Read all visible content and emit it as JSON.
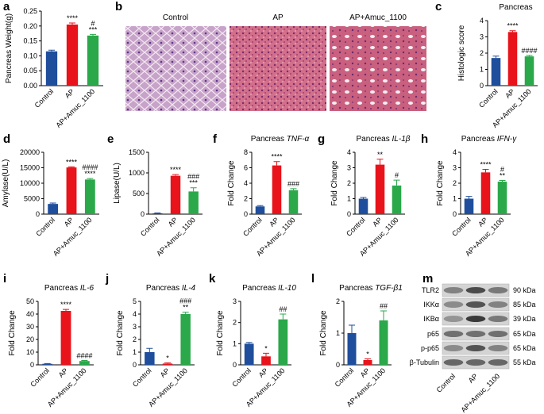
{
  "panel_labels": [
    "a",
    "b",
    "c",
    "d",
    "e",
    "f",
    "g",
    "h",
    "i",
    "j",
    "k",
    "l",
    "m"
  ],
  "histology": {
    "labels": [
      "Control",
      "AP",
      "AP+Amuc_1100"
    ]
  },
  "western_blot": {
    "proteins": [
      "TLR2",
      "IKKα",
      "IKBα",
      "p65",
      "p-p65",
      "β-Tubulin"
    ],
    "sizes": [
      "90 kDa",
      "85 kDa",
      "39 kDa",
      "65 kDa",
      "65 kDa",
      "55 kDa"
    ],
    "lanes": [
      "Control",
      "AP",
      "AP+Amuc_1100"
    ]
  },
  "chart_data": [
    {
      "type": "bar",
      "ylabel": "Pancreas Weight(g)",
      "categories": [
        "Control",
        "AP",
        "AP+Amuc_1100"
      ],
      "colors": [
        "#1f4e9c",
        "#e8131b",
        "#2aa84a"
      ],
      "values": [
        0.115,
        0.205,
        0.168
      ],
      "errors": [
        0.004,
        0.005,
        0.004
      ],
      "annotations": [
        null,
        [
          "****"
        ],
        [
          "***",
          "#"
        ]
      ],
      "ylim": [
        0,
        0.25
      ],
      "yticks": [
        {
          "value": 0,
          "label": "0.00"
        },
        {
          "value": 0.05,
          "label": "0.05"
        },
        {
          "value": 0.1,
          "label": "0.10"
        },
        {
          "value": 0.15,
          "label": "0.15"
        },
        {
          "value": 0.2,
          "label": "0.20"
        },
        {
          "value": 0.25,
          "label": "0.25"
        }
      ]
    },
    {
      "type": "bar",
      "title": "Pancreas",
      "ylabel": "Histologic score",
      "categories": [
        "Control",
        "AP",
        "AP+Amuc_1100"
      ],
      "colors": [
        "#1f4e9c",
        "#e8131b",
        "#2aa84a"
      ],
      "values": [
        1.7,
        3.3,
        1.8
      ],
      "errors": [
        0.12,
        0.08,
        0.06
      ],
      "annotations": [
        null,
        [
          "****"
        ],
        [
          "####"
        ]
      ],
      "ylim": [
        0,
        4
      ],
      "yticks": [
        0,
        1,
        2,
        3,
        4
      ]
    },
    {
      "type": "bar",
      "ylabel": "Amylase(U/L)",
      "categories": [
        "Control",
        "AP",
        "AP+Amuc_1100"
      ],
      "colors": [
        "#1f4e9c",
        "#e8131b",
        "#2aa84a"
      ],
      "values": [
        3300,
        15100,
        11200
      ],
      "errors": [
        300,
        200,
        300
      ],
      "annotations": [
        null,
        [
          "****"
        ],
        [
          "****",
          "####"
        ]
      ],
      "ylim": [
        0,
        20000
      ],
      "yticks": [
        0,
        5000,
        10000,
        15000,
        20000
      ]
    },
    {
      "type": "bar",
      "ylabel": "Lipase(U/L)",
      "categories": [
        "Control",
        "AP",
        "AP+Amuc_1100"
      ],
      "colors": [
        "#1f4e9c",
        "#e8131b",
        "#2aa84a"
      ],
      "values": [
        20,
        930,
        550
      ],
      "errors": [
        10,
        30,
        90
      ],
      "annotations": [
        null,
        [
          "****"
        ],
        [
          "***",
          "###"
        ]
      ],
      "ylim": [
        0,
        1500
      ],
      "yticks": [
        0,
        500,
        1000,
        1500
      ]
    },
    {
      "type": "bar",
      "title": "Pancreas",
      "title_gene": "TNF-α",
      "ylabel": "Fold Change",
      "categories": [
        "Control",
        "AP",
        "AP+Amuc_1100"
      ],
      "colors": [
        "#1f4e9c",
        "#e8131b",
        "#2aa84a"
      ],
      "values": [
        1.0,
        6.3,
        3.1
      ],
      "errors": [
        0.1,
        0.5,
        0.2
      ],
      "annotations": [
        null,
        [
          "****"
        ],
        [
          "###"
        ]
      ],
      "ylim": [
        0,
        8
      ],
      "yticks": [
        0,
        2,
        4,
        6,
        8
      ]
    },
    {
      "type": "bar",
      "title": "Pancreas",
      "title_gene": "IL-1β",
      "ylabel": "Fold Change",
      "categories": [
        "Control",
        "AP",
        "AP+Amuc_1100"
      ],
      "colors": [
        "#1f4e9c",
        "#e8131b",
        "#2aa84a"
      ],
      "values": [
        1.0,
        3.2,
        1.85
      ],
      "errors": [
        0.08,
        0.35,
        0.35
      ],
      "annotations": [
        null,
        [
          "**"
        ],
        [
          "#"
        ]
      ],
      "ylim": [
        0,
        4
      ],
      "yticks": [
        0,
        1,
        2,
        3,
        4
      ]
    },
    {
      "type": "bar",
      "title": "Pancreas",
      "title_gene": "IFN-γ",
      "ylabel": "Fold Change",
      "categories": [
        "Control",
        "AP",
        "AP+Amuc_1100"
      ],
      "colors": [
        "#1f4e9c",
        "#e8131b",
        "#2aa84a"
      ],
      "values": [
        1.0,
        2.7,
        2.1
      ],
      "errors": [
        0.15,
        0.2,
        0.08
      ],
      "annotations": [
        null,
        [
          "****"
        ],
        [
          "**",
          "#"
        ]
      ],
      "ylim": [
        0,
        4
      ],
      "yticks": [
        0,
        1,
        2,
        3,
        4
      ]
    },
    {
      "type": "bar",
      "title": "Pancreas",
      "title_gene": "IL-6",
      "ylabel": "Fold Change",
      "categories": [
        "Control",
        "AP",
        "AP+Amuc_1100"
      ],
      "colors": [
        "#1f4e9c",
        "#e8131b",
        "#2aa84a"
      ],
      "values": [
        0.8,
        42.5,
        3
      ],
      "errors": [
        0.2,
        1.2,
        0.4
      ],
      "annotations": [
        null,
        [
          "****"
        ],
        [
          "####"
        ]
      ],
      "ylim": [
        0,
        50
      ],
      "yticks": [
        0,
        10,
        20,
        30,
        40,
        50
      ]
    },
    {
      "type": "bar",
      "title": "Pancreas",
      "title_gene": "IL-4",
      "ylabel": "Fold Change",
      "categories": [
        "Control",
        "AP",
        "AP+Amuc_1100"
      ],
      "colors": [
        "#1f4e9c",
        "#e8131b",
        "#2aa84a"
      ],
      "values": [
        1.0,
        0.1,
        4.0
      ],
      "errors": [
        0.3,
        0.05,
        0.15
      ],
      "annotations": [
        null,
        [
          "*"
        ],
        [
          "**",
          "###"
        ]
      ],
      "ylim": [
        0,
        5
      ],
      "yticks": [
        0,
        1,
        2,
        3,
        4,
        5
      ]
    },
    {
      "type": "bar",
      "title": "Pancreas",
      "title_gene": "IL-10",
      "ylabel": "Fold Change",
      "categories": [
        "Control",
        "AP",
        "AP+Amuc_1100"
      ],
      "colors": [
        "#1f4e9c",
        "#e8131b",
        "#2aa84a"
      ],
      "values": [
        1.0,
        0.4,
        2.15
      ],
      "errors": [
        0.06,
        0.15,
        0.25
      ],
      "annotations": [
        null,
        [
          "*"
        ],
        [
          "##"
        ]
      ],
      "ylim": [
        0,
        3
      ],
      "yticks": [
        0,
        1,
        2,
        3
      ]
    },
    {
      "type": "bar",
      "title": "Pancreas",
      "title_gene": "TGF-β1",
      "ylabel": "Fold Change",
      "categories": [
        "Control",
        "AP",
        "AP+Amuc_1100"
      ],
      "colors": [
        "#1f4e9c",
        "#e8131b",
        "#2aa84a"
      ],
      "values": [
        1.0,
        0.15,
        1.4
      ],
      "errors": [
        0.25,
        0.04,
        0.3
      ],
      "annotations": [
        null,
        [
          "*"
        ],
        [
          "##"
        ]
      ],
      "ylim": [
        0,
        2
      ],
      "yticks": [
        0,
        1,
        2
      ]
    }
  ]
}
